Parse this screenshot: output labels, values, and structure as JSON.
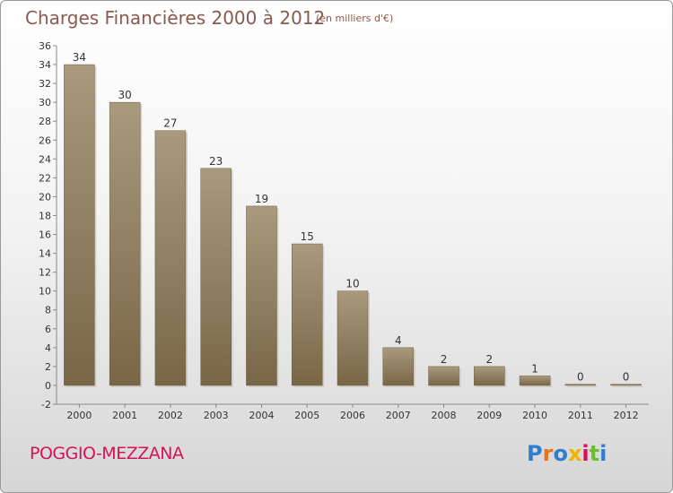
{
  "header": {
    "title": "Charges Financières 2000 à 2012",
    "unit": "(en milliers d'€)"
  },
  "footer": {
    "commune": "POGGIO-MEZZANA",
    "logo": "Proxiti",
    "logo_colors": [
      "#2f7fd1",
      "#e8731a",
      "#2f7fd1",
      "#f2b200",
      "#d4145a",
      "#6cbf2e",
      "#2f7fd1"
    ]
  },
  "colors": {
    "bar_light": "#a99a7d",
    "bar_dark": "#786646",
    "axis": "#888888",
    "tick_label": "#333333",
    "title": "#8a5a4c",
    "commune": "#d4145a"
  },
  "chart_data": {
    "type": "bar",
    "title": "Charges Financières 2000 à 2012",
    "subtitle": "(en milliers d'€)",
    "categories": [
      "2000",
      "2001",
      "2002",
      "2003",
      "2004",
      "2005",
      "2006",
      "2007",
      "2008",
      "2009",
      "2010",
      "2011",
      "2012"
    ],
    "values": [
      34,
      30,
      27,
      23,
      19,
      15,
      10,
      4,
      2,
      2,
      1,
      0,
      0
    ],
    "ylim": [
      -2,
      36
    ],
    "yticks": [
      -2,
      0,
      2,
      4,
      6,
      8,
      10,
      12,
      14,
      16,
      18,
      20,
      22,
      24,
      26,
      28,
      30,
      32,
      34,
      36
    ],
    "data_labels": true,
    "grid": false,
    "legend": "none"
  }
}
